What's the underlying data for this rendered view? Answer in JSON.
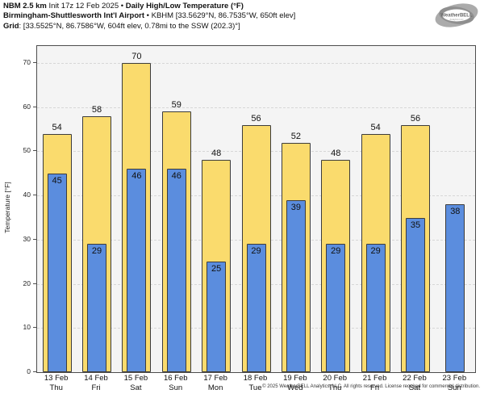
{
  "header": {
    "line1": {
      "model": "NBM 2.5 km",
      "init": " Init 17z 12 Feb 2025 • ",
      "title": "Daily High/Low Temperature (°F)"
    },
    "line2": {
      "station": "Birmingham-Shuttlesworth Int'l Airport",
      "details": " • KBHM [33.5629°N, 86.7535°W, 650ft elev]"
    },
    "line3": {
      "label": "Grid",
      "details": ": [33.5525°N, 86.7586°W, 604ft elev, 0.78mi to the SSW (202.3)°]"
    }
  },
  "logo": {
    "text": "WeatherBELL",
    "subtext": "Analytics LLC"
  },
  "chart_data": {
    "type": "bar",
    "title": "Daily High/Low Temperature (°F)",
    "categories": [
      "13 Feb",
      "14 Feb",
      "15 Feb",
      "16 Feb",
      "17 Feb",
      "18 Feb",
      "19 Feb",
      "20 Feb",
      "21 Feb",
      "22 Feb",
      "23 Feb"
    ],
    "weekdays": [
      "Thu",
      "Fri",
      "Sat",
      "Sun",
      "Mon",
      "Tue",
      "Wed",
      "Thu",
      "Fri",
      "Sat",
      "Sun"
    ],
    "series": [
      {
        "name": "High",
        "color": "#fadb6d",
        "values": [
          54,
          58,
          70,
          59,
          48,
          56,
          52,
          48,
          54,
          56,
          null
        ]
      },
      {
        "name": "Low",
        "color": "#5b8dde",
        "values": [
          45,
          29,
          46,
          46,
          25,
          29,
          39,
          29,
          29,
          35,
          38
        ]
      }
    ],
    "ylabel": "Temperature [°F]",
    "yticks": [
      0,
      10,
      20,
      30,
      40,
      50,
      60,
      70
    ],
    "ylim": [
      0,
      73.9
    ],
    "grid": "dashed horizontal",
    "legend": "none",
    "plot_bg": "#f4f4f4",
    "bar_border": "#3c3c3c"
  },
  "footer": "© 2025 WeatherBELL Analytics, LLC. All rights reserved. License required for commercial distribution."
}
